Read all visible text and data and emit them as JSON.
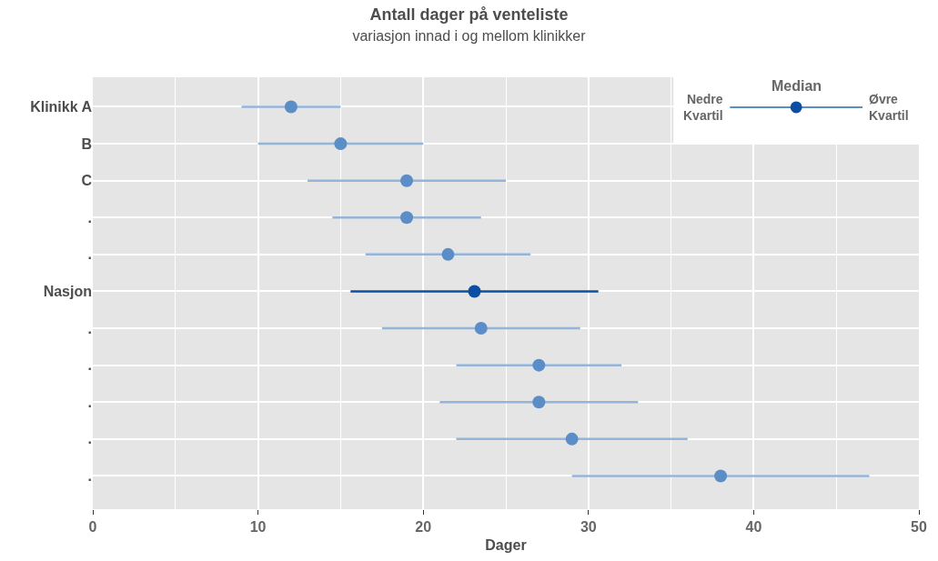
{
  "chart_data": {
    "type": "scatter",
    "title": "Antall dager på venteliste",
    "subtitle": "variasjon innad i og mellom klinikker",
    "xlabel": "Dager",
    "orientation": "horizontal",
    "categories": [
      "Klinikk A",
      "B",
      "C",
      ".",
      ".",
      "Nasjon",
      ".",
      ".",
      ".",
      ".",
      "."
    ],
    "series": [
      {
        "color": "#5b8dc7",
        "values": [
          12,
          15,
          19,
          19,
          21.5,
          null,
          23.5,
          27,
          27,
          29,
          38
        ],
        "errors": [
          [
            9,
            15
          ],
          [
            10,
            20
          ],
          [
            13,
            25
          ],
          [
            14.5,
            23.5
          ],
          [
            16.5,
            26.5
          ],
          null,
          [
            17.5,
            29.5
          ],
          [
            22,
            32
          ],
          [
            21,
            33
          ],
          [
            22,
            36
          ],
          [
            29,
            47
          ]
        ]
      },
      {
        "color": "#0b4ea2",
        "values": [
          null,
          null,
          null,
          null,
          null,
          23.1,
          null,
          null,
          null,
          null,
          null
        ],
        "errors": [
          null,
          null,
          null,
          null,
          null,
          [
            15.6,
            30.6
          ],
          null,
          null,
          null,
          null,
          null
        ]
      }
    ],
    "xlim": [
      0,
      50
    ],
    "xticks": [
      0,
      10,
      20,
      30,
      40,
      50
    ],
    "grid": true,
    "marker": "circle",
    "annotations": [
      "Median",
      "Nedre\nKvartil",
      "Øvre\nKvartil"
    ]
  }
}
